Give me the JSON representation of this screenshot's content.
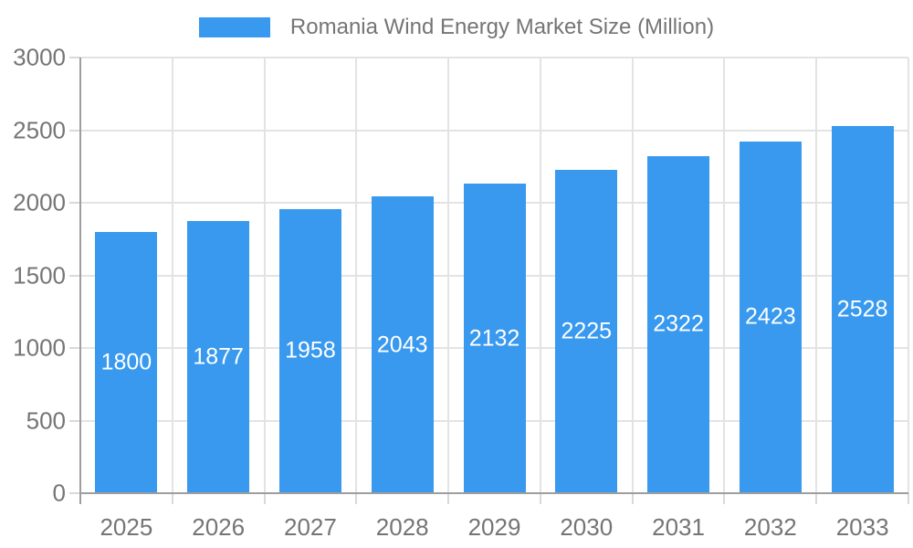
{
  "legend": {
    "label": "Romania Wind Energy Market Size (Million)"
  },
  "chart_data": {
    "type": "bar",
    "title": "Romania Wind Energy Market Size (Million)",
    "categories": [
      "2025",
      "2026",
      "2027",
      "2028",
      "2029",
      "2030",
      "2031",
      "2032",
      "2033"
    ],
    "values": [
      1800,
      1877,
      1958,
      2043,
      2132,
      2225,
      2322,
      2423,
      2528
    ],
    "xlabel": "",
    "ylabel": "",
    "ylim": [
      0,
      3000
    ],
    "ytick_step": 500,
    "ytick_labels": [
      "0",
      "500",
      "1000",
      "1500",
      "2000",
      "2500",
      "3000"
    ],
    "grid": true,
    "legend_position": "top-center",
    "value_labels": "inside-center",
    "colors": {
      "bar": "#3899ee",
      "value_label": "#ffffff",
      "axis_line": "#9e9e9e",
      "gridline": "#e3e3e3",
      "tick": "#d9d9d9",
      "text": "#757575"
    }
  }
}
